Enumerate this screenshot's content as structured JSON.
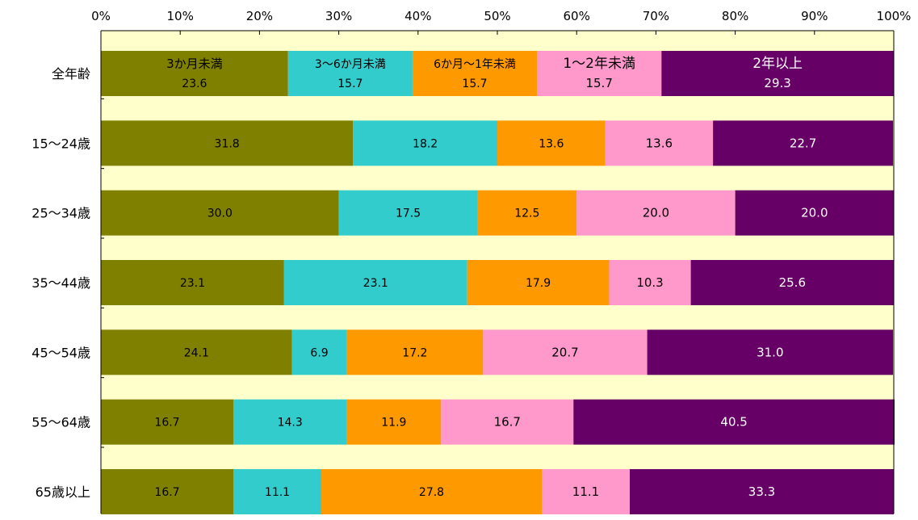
{
  "chart_data": {
    "type": "bar",
    "orientation": "horizontal",
    "stacked": true,
    "percent": true,
    "title": "",
    "xlabel": "",
    "ylabel": "",
    "xlim": [
      0,
      100
    ],
    "x_ticks": [
      "0%",
      "10%",
      "20%",
      "30%",
      "40%",
      "50%",
      "60%",
      "70%",
      "80%",
      "90%",
      "100%"
    ],
    "x_axis_position": "top",
    "grid": false,
    "legend": "none (series names shown as in-bar labels in the first row)",
    "plot_background": "#FFFFCC",
    "categories": [
      "全年齢",
      "15〜24歳",
      "25〜34歳",
      "35〜44歳",
      "45〜54歳",
      "55〜64歳",
      "65歳以上"
    ],
    "series": [
      {
        "name": "3か月未満",
        "color": "#808000",
        "label_color": "#000000",
        "values": [
          23.6,
          31.8,
          30.0,
          23.1,
          24.1,
          16.7,
          16.7
        ],
        "labels": [
          "23.6",
          "31.8",
          "30.0",
          "23.1",
          "24.1",
          "16.7",
          "16.7"
        ]
      },
      {
        "name": "3〜6か月未満",
        "color": "#33CCCC",
        "label_color": "#000000",
        "values": [
          15.7,
          18.2,
          17.5,
          23.1,
          6.9,
          14.3,
          11.1
        ],
        "labels": [
          "15.7",
          "18.2",
          "17.5",
          "23.1",
          "6.9",
          "14.3",
          "11.1"
        ]
      },
      {
        "name": "6か月〜1年未満",
        "color": "#FF9900",
        "label_color": "#000000",
        "values": [
          15.7,
          13.6,
          12.5,
          17.9,
          17.2,
          11.9,
          27.8
        ],
        "labels": [
          "15.7",
          "13.6",
          "12.5",
          "17.9",
          "17.2",
          "11.9",
          "27.8"
        ]
      },
      {
        "name": "1〜2年未満",
        "color": "#FF99CC",
        "label_color": "#000000",
        "values": [
          15.7,
          13.6,
          20.0,
          10.3,
          20.7,
          16.7,
          11.1
        ],
        "labels": [
          "15.7",
          "13.6",
          "20.0",
          "10.3",
          "20.7",
          "16.7",
          "11.1"
        ]
      },
      {
        "name": "2年以上",
        "color": "#660066",
        "label_color": "#FFFFFF",
        "values": [
          29.3,
          22.7,
          20.0,
          25.6,
          31.0,
          40.5,
          33.3
        ],
        "labels": [
          "29.3",
          "22.7",
          "20.0",
          "25.6",
          "31.0",
          "40.5",
          "33.3"
        ]
      }
    ]
  }
}
